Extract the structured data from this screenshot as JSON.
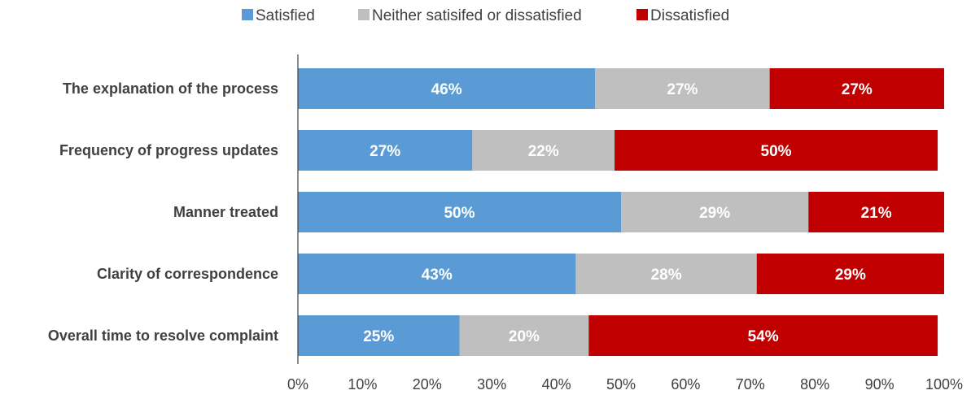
{
  "chart_data": {
    "type": "bar",
    "orientation": "horizontal",
    "stacked": true,
    "categories": [
      "The explanation of the process",
      "Frequency of progress updates",
      "Manner treated",
      "Clarity of correspondence",
      "Overall time to resolve complaint"
    ],
    "series": [
      {
        "name": "Satisfied",
        "color": "#5b9bd5",
        "values": [
          46,
          27,
          50,
          43,
          25
        ],
        "labels": [
          "46%",
          "27%",
          "50%",
          "43%",
          "25%"
        ]
      },
      {
        "name": "Neither satisifed or dissatisfied",
        "color": "#bfbfbf",
        "values": [
          27,
          22,
          29,
          28,
          20
        ],
        "labels": [
          "27%",
          "22%",
          "29%",
          "28%",
          "20%"
        ]
      },
      {
        "name": "Dissatisfied",
        "color": "#c00000",
        "values": [
          27,
          50,
          21,
          29,
          54
        ],
        "labels": [
          "27%",
          "50%",
          "21%",
          "29%",
          "54%"
        ]
      }
    ],
    "xlim": [
      0,
      100
    ],
    "xticks": [
      "0%",
      "10%",
      "20%",
      "30%",
      "40%",
      "50%",
      "60%",
      "70%",
      "80%",
      "90%",
      "100%"
    ],
    "legend_position": "top",
    "grid": false,
    "title": "",
    "xlabel": "",
    "ylabel": ""
  }
}
